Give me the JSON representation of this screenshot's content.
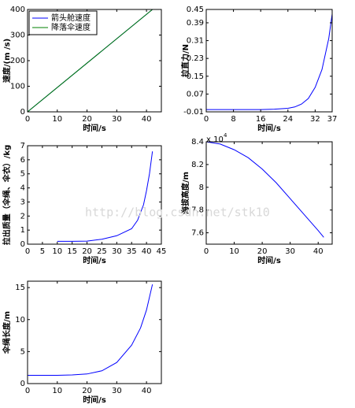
{
  "watermark": "http://blog.csdn.net/stk10",
  "chart_data": [
    {
      "type": "line",
      "xlabel": "时间/s",
      "ylabel": "速度/(m /s)",
      "x": [
        0,
        42
      ],
      "series": [
        {
          "name": "箭头舱速度",
          "color": "#0000ff",
          "values": [
            0,
            400
          ]
        },
        {
          "name": "降落伞速度",
          "color": "#008000",
          "values": [
            0,
            400
          ]
        }
      ],
      "xlim": [
        0,
        45
      ],
      "xticks": [
        0,
        10,
        20,
        30,
        40
      ],
      "ylim": [
        0,
        400
      ],
      "yticks": [
        0,
        100,
        200,
        300,
        400
      ],
      "legend": "top-left"
    },
    {
      "type": "line",
      "xlabel": "时间/s",
      "ylabel": "拉直力/N",
      "x": [
        0,
        4,
        8,
        12,
        16,
        20,
        24,
        26,
        28,
        30,
        32,
        34,
        36,
        37
      ],
      "series": [
        {
          "color": "#0000ff",
          "values": [
            0,
            0,
            0,
            0,
            0,
            0.002,
            0.006,
            0.012,
            0.025,
            0.05,
            0.1,
            0.18,
            0.32,
            0.43
          ]
        }
      ],
      "xlim": [
        0,
        37
      ],
      "xticks": [
        0,
        8,
        16,
        24,
        32,
        37
      ],
      "ylim": [
        -0.01,
        0.45
      ],
      "yticks": [
        -0.01,
        0.07,
        0.15,
        0.23,
        0.31,
        0.39,
        0.45
      ]
    },
    {
      "type": "line",
      "xlabel": "时间/s",
      "ylabel": "拉出质量（伞绳、伞衣）/kg",
      "x": [
        10,
        15,
        20,
        25,
        30,
        35,
        37,
        39,
        40,
        41,
        42
      ],
      "series": [
        {
          "color": "#0000ff",
          "values": [
            0.2,
            0.2,
            0.22,
            0.35,
            0.6,
            1.1,
            1.7,
            2.8,
            3.8,
            5.0,
            6.6
          ]
        }
      ],
      "xlim": [
        0,
        45
      ],
      "xticks": [
        0,
        5,
        10,
        15,
        20,
        25,
        30,
        35,
        40,
        45
      ],
      "ylim": [
        0,
        7
      ],
      "yticks": [
        0,
        1,
        2,
        3,
        4,
        5,
        6,
        7
      ]
    },
    {
      "type": "line",
      "xlabel": "时间/s",
      "ylabel": "海拔高度/m",
      "y_scale_base": "x 10",
      "y_scale_exp": "4",
      "x": [
        0,
        5,
        10,
        15,
        20,
        25,
        30,
        35,
        40,
        42
      ],
      "series": [
        {
          "color": "#0000ff",
          "values": [
            8.4,
            8.38,
            8.33,
            8.26,
            8.16,
            8.04,
            7.9,
            7.76,
            7.62,
            7.56
          ]
        }
      ],
      "xlim": [
        0,
        45
      ],
      "xticks": [
        0,
        10,
        20,
        30,
        40
      ],
      "ylim": [
        7.5,
        8.4
      ],
      "yticks": [
        7.6,
        7.8,
        {
          "value": 8,
          "label": "8"
        },
        8.2,
        8.4
      ]
    },
    {
      "type": "line",
      "xlabel": "时间/s",
      "ylabel": "伞绳长度/m",
      "x": [
        0,
        5,
        10,
        15,
        20,
        25,
        30,
        35,
        38,
        40,
        42
      ],
      "series": [
        {
          "color": "#0000ff",
          "values": [
            1.3,
            1.3,
            1.3,
            1.35,
            1.5,
            2.0,
            3.3,
            6.0,
            8.7,
            11.5,
            15.5
          ]
        }
      ],
      "xlim": [
        0,
        45
      ],
      "xticks": [
        0,
        10,
        20,
        30,
        40
      ],
      "ylim": [
        0,
        16
      ],
      "yticks": [
        0,
        5,
        10,
        15
      ]
    }
  ]
}
